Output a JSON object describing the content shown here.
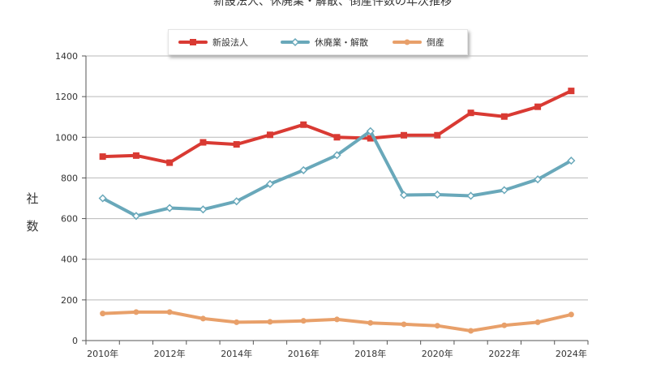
{
  "chart_data": {
    "type": "line",
    "title": "新設法人、休廃業・解散、倒産件数の年次推移",
    "ylabel": "社数",
    "xlabel": "",
    "ylim": [
      0,
      1400
    ],
    "yticks": [
      "0",
      "200",
      "400",
      "600",
      "800",
      "1000",
      "1200",
      "1400"
    ],
    "x": [
      "2010年",
      "2011年",
      "2012年",
      "2013年",
      "2014年",
      "2015年",
      "2016年",
      "2017年",
      "2018年",
      "2019年",
      "2020年",
      "2021年",
      "2022年",
      "2023年",
      "2024年"
    ],
    "xtick_labels": [
      "2010年",
      "2012年",
      "2014年",
      "2016年",
      "2018年",
      "2020年",
      "2022年",
      "2024年"
    ],
    "grid": "horizontal",
    "legend_position": "top-center",
    "series": [
      {
        "name": "新設法人",
        "color": "#d93a33",
        "marker": "square",
        "values": [
          905,
          910,
          875,
          975,
          965,
          1012,
          1062,
          1000,
          995,
          1010,
          1010,
          1120,
          1102,
          1150,
          1228
        ]
      },
      {
        "name": "休廃業・解散",
        "color": "#69a8ba",
        "marker": "diamond",
        "values": [
          700,
          613,
          652,
          645,
          685,
          770,
          838,
          912,
          1030,
          716,
          718,
          712,
          740,
          793,
          885
        ]
      },
      {
        "name": "倒産",
        "color": "#e8a06a",
        "marker": "circle",
        "values": [
          133,
          140,
          140,
          108,
          90,
          92,
          97,
          104,
          87,
          80,
          73,
          48,
          75,
          90,
          128
        ]
      }
    ]
  }
}
